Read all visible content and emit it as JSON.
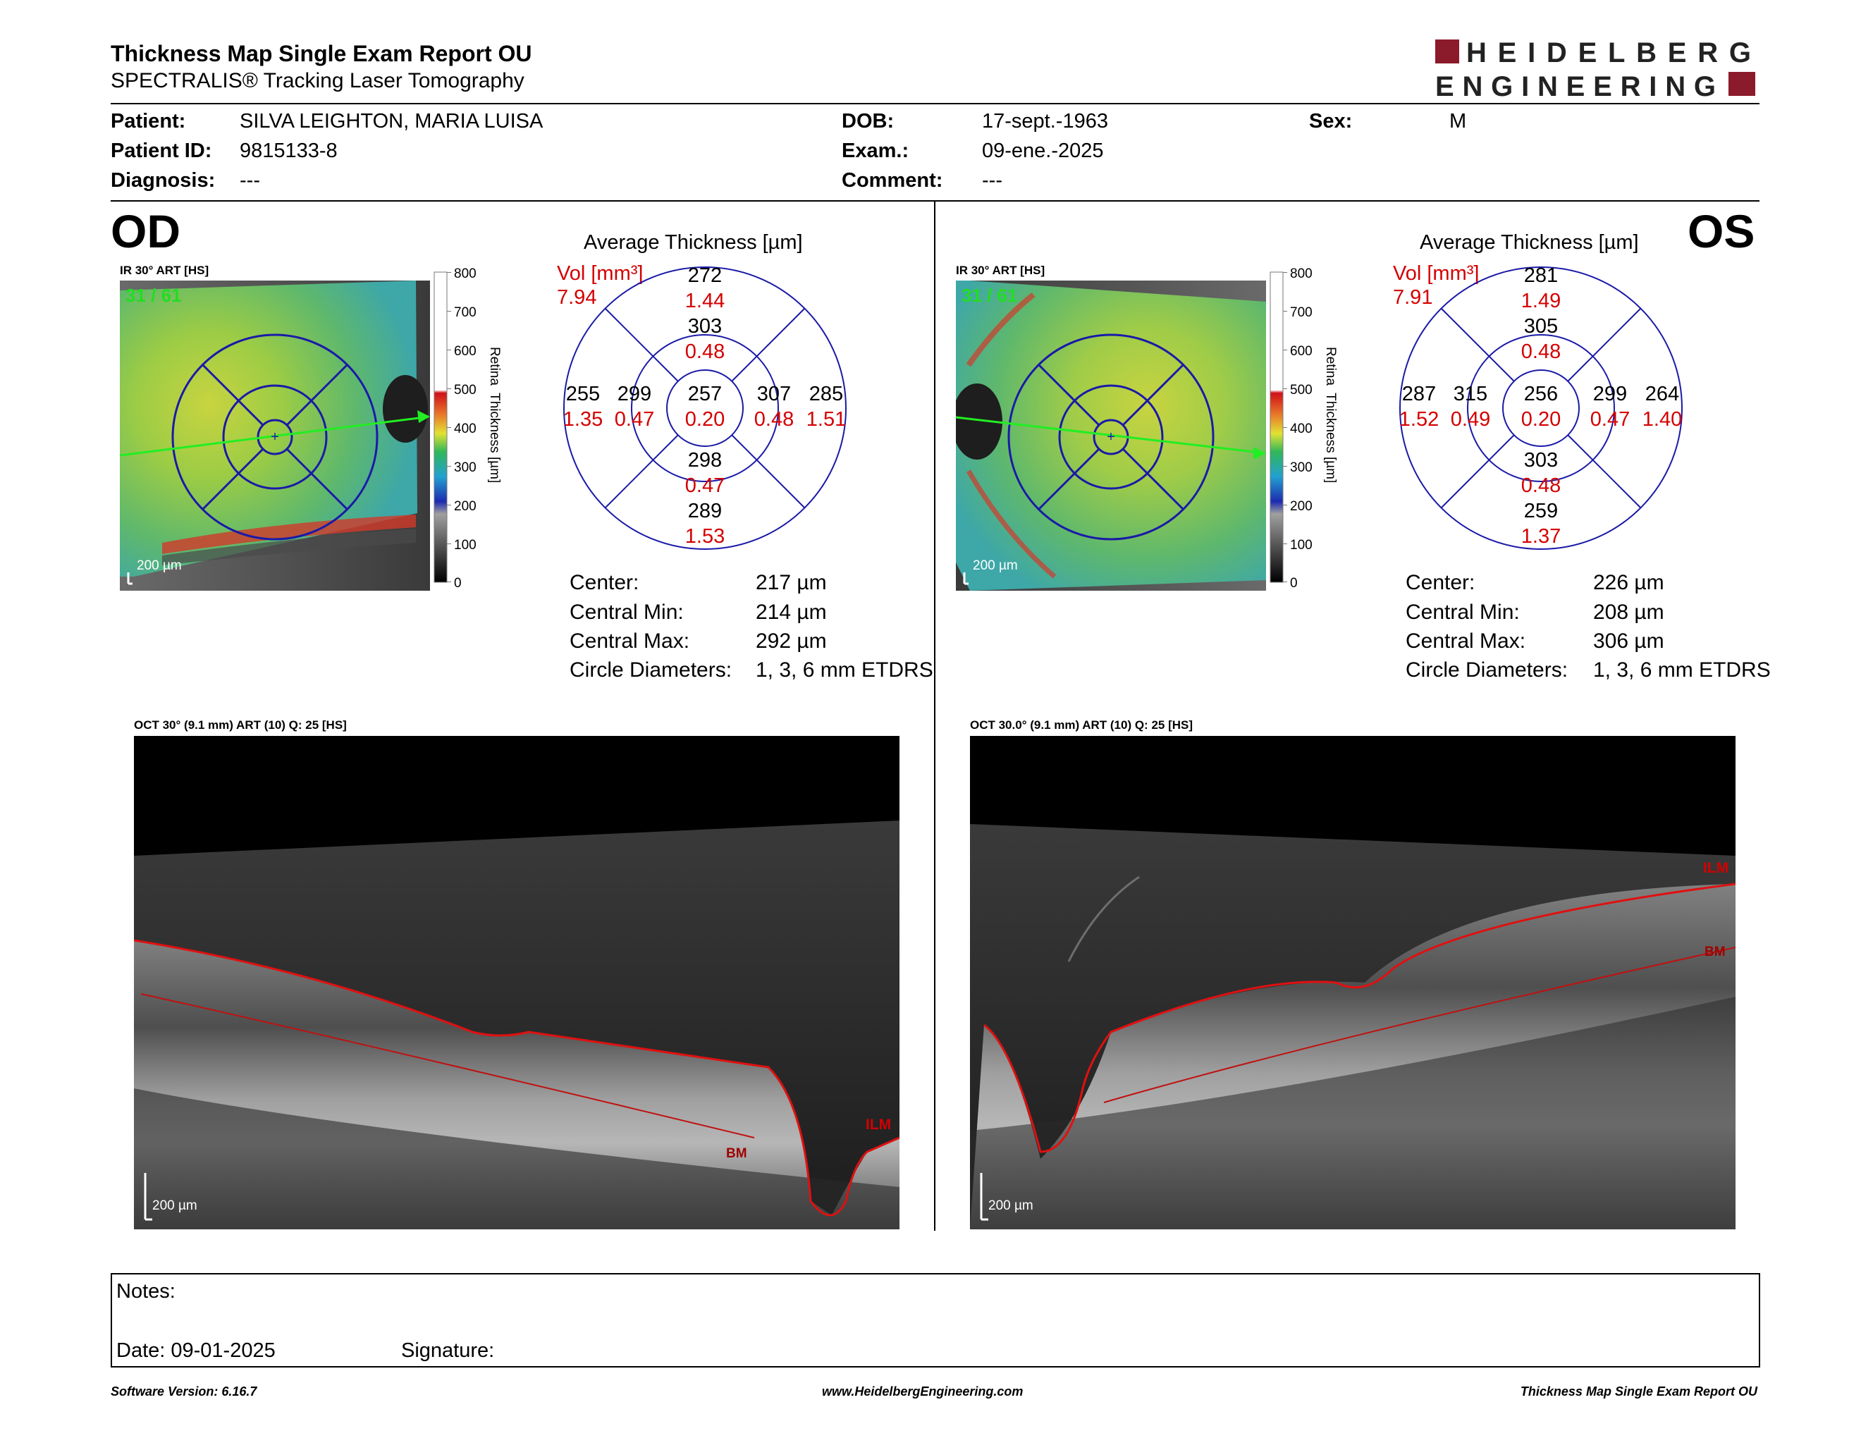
{
  "header": {
    "title": "Thickness Map Single Exam Report OU",
    "subtitle": "SPECTRALIS® Tracking Laser Tomography",
    "logo_line1": "HEIDELBERG",
    "logo_line2": "ENGINEERING",
    "logo_color": "#8b1a2b"
  },
  "patient": {
    "patient_label": "Patient:",
    "patient_value": "SILVA LEIGHTON, MARIA LUISA",
    "id_label": "Patient ID:",
    "id_value": "9815133-8",
    "diag_label": "Diagnosis:",
    "diag_value": "---",
    "dob_label": "DOB:",
    "dob_value": "17-sept.-1963",
    "exam_label": "Exam.:",
    "exam_value": "09-ene.-2025",
    "comment_label": "Comment:",
    "comment_value": "---",
    "sex_label": "Sex:",
    "sex_value": "M"
  },
  "od": {
    "eye_label": "OD",
    "ir_label": "IR 30° ART [HS]",
    "frame_count": "31 / 61",
    "scale_label": "200 µm",
    "colorbar_ticks": [
      "800",
      "700",
      "600",
      "500",
      "400",
      "300",
      "200",
      "100",
      "0"
    ],
    "colorbar_title": "Retina  Thickness [µm]",
    "avg_title": "Average Thickness [µm]",
    "vol_label": "Vol [mm³]",
    "vol_value": "7.94",
    "sectors": {
      "center": {
        "t": "257",
        "v": "0.20"
      },
      "inner_sup": {
        "t": "303",
        "v": "0.48"
      },
      "inner_inf": {
        "t": "298",
        "v": "0.47"
      },
      "inner_left": {
        "t": "299",
        "v": "0.47"
      },
      "inner_right": {
        "t": "307",
        "v": "0.48"
      },
      "outer_sup": {
        "t": "272",
        "v": "1.44"
      },
      "outer_inf": {
        "t": "289",
        "v": "1.53"
      },
      "outer_left": {
        "t": "255",
        "v": "1.35"
      },
      "outer_right": {
        "t": "285",
        "v": "1.51"
      }
    },
    "stats": [
      {
        "label": "Center:",
        "value": "217 µm"
      },
      {
        "label": "Central Min:",
        "value": "214 µm"
      },
      {
        "label": "Central Max:",
        "value": "292 µm"
      },
      {
        "label": "Circle Diameters:",
        "value": "1, 3, 6 mm ETDRS"
      }
    ],
    "oct_label": "OCT 30° (9.1 mm) ART (10) Q: 25 [HS]",
    "oct_scale": "200 µm",
    "ilm": "ILM",
    "bm": "BM"
  },
  "os": {
    "eye_label": "OS",
    "ir_label": "IR 30° ART [HS]",
    "frame_count": "31 / 61",
    "scale_label": "200 µm",
    "colorbar_ticks": [
      "800",
      "700",
      "600",
      "500",
      "400",
      "300",
      "200",
      "100",
      "0"
    ],
    "colorbar_title": "Retina  Thickness [µm]",
    "avg_title": "Average Thickness [µm]",
    "vol_label": "Vol [mm³]",
    "vol_value": "7.91",
    "sectors": {
      "center": {
        "t": "256",
        "v": "0.20"
      },
      "inner_sup": {
        "t": "305",
        "v": "0.48"
      },
      "inner_inf": {
        "t": "303",
        "v": "0.48"
      },
      "inner_left": {
        "t": "315",
        "v": "0.49"
      },
      "inner_right": {
        "t": "299",
        "v": "0.47"
      },
      "outer_sup": {
        "t": "281",
        "v": "1.49"
      },
      "outer_inf": {
        "t": "259",
        "v": "1.37"
      },
      "outer_left": {
        "t": "287",
        "v": "1.52"
      },
      "outer_right": {
        "t": "264",
        "v": "1.40"
      }
    },
    "stats": [
      {
        "label": "Center:",
        "value": "226 µm"
      },
      {
        "label": "Central Min:",
        "value": "208 µm"
      },
      {
        "label": "Central Max:",
        "value": "306 µm"
      },
      {
        "label": "Circle Diameters:",
        "value": "1, 3, 6 mm ETDRS"
      }
    ],
    "oct_label": "OCT 30.0° (9.1 mm) ART (10) Q: 25 [HS]",
    "oct_scale": "200 µm",
    "ilm": "ILM",
    "bm": "BM"
  },
  "notes": {
    "notes_label": "Notes:",
    "date_label": "Date: 09-01-2025",
    "signature_label": "Signature:"
  },
  "footer": {
    "version": "Software Version: 6.16.7",
    "website": "www.HeidelbergEngineering.com",
    "report_name": "Thickness Map Single Exam Report OU"
  },
  "colors": {
    "ring_blue": "#1a1aa8",
    "value_red": "#d40000",
    "counter_green": "#22dd22",
    "scan_arrow": "#22ee22"
  }
}
